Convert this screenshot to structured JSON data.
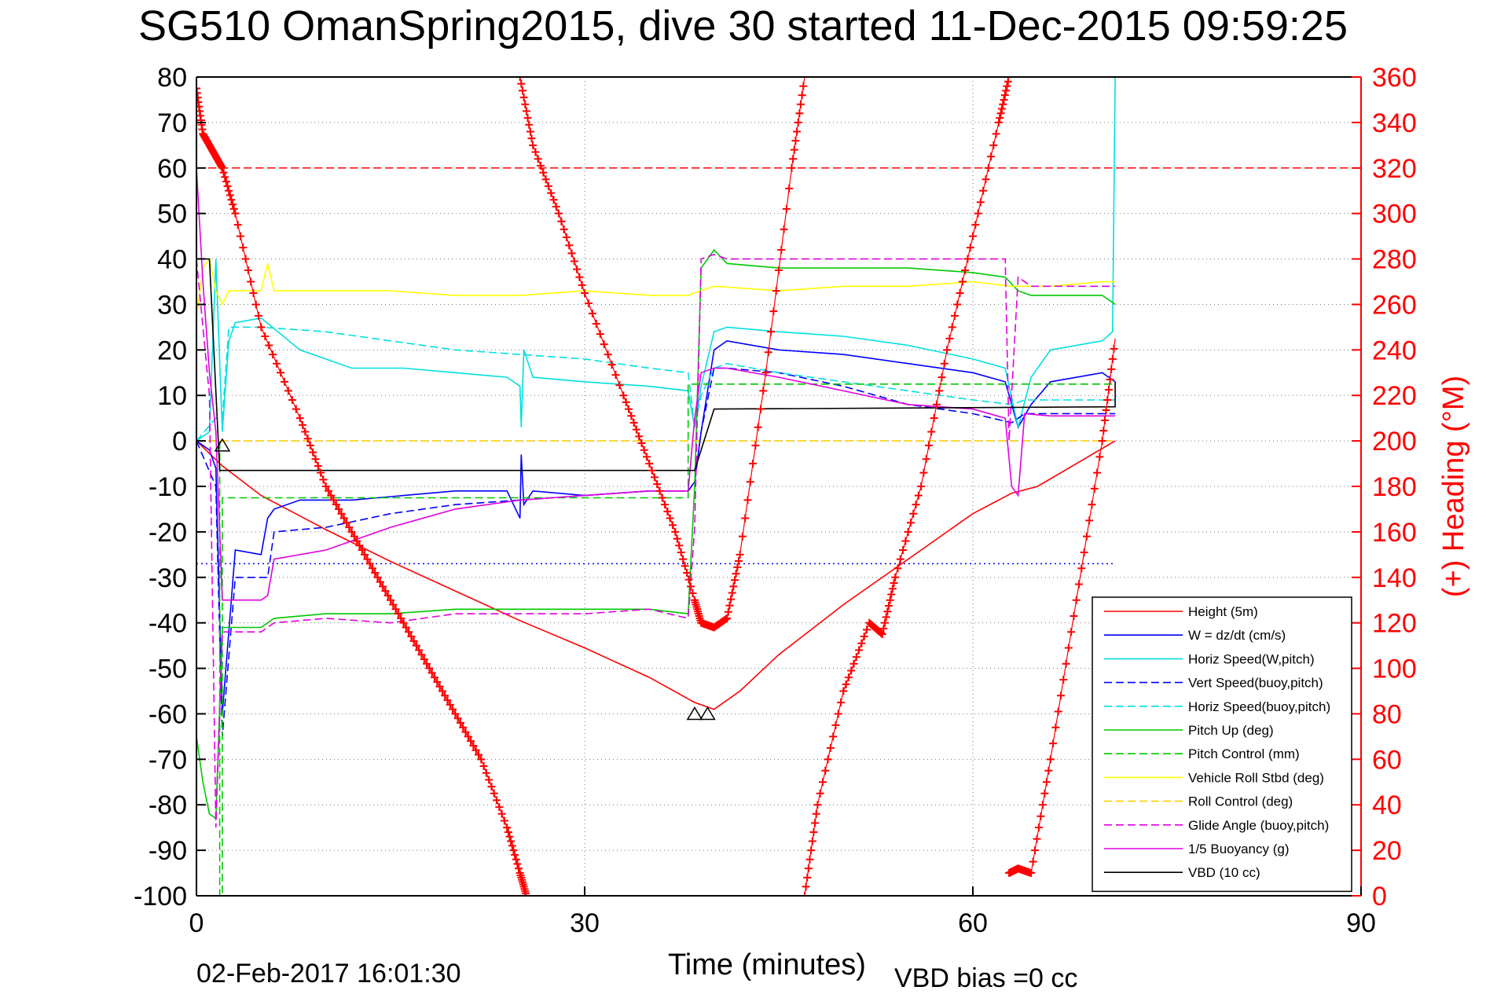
{
  "title": "SG510 OmanSpring2015, dive 30 started 11-Dec-2015 09:59:25",
  "date_stamp": "02-Feb-2017 16:01:30",
  "vbd_bias": "VBD bias =0 cc",
  "chart_data": {
    "type": "line",
    "title": "SG510 OmanSpring2015, dive 30 started 11-Dec-2015 09:59:25",
    "xlabel": "Time (minutes)",
    "ylabel": "",
    "y2label": "(+) Heading (°M)",
    "xlim": [
      0,
      90
    ],
    "ylim": [
      -100,
      80
    ],
    "y2lim": [
      0,
      360
    ],
    "xticks": [
      "0",
      "30",
      "60",
      "90"
    ],
    "yticks": [
      "80",
      "70",
      "60",
      "50",
      "40",
      "30",
      "20",
      "10",
      "0",
      "-10",
      "-20",
      "-30",
      "-40",
      "-50",
      "-60",
      "-70",
      "-80",
      "-90",
      "-100"
    ],
    "y2ticks": [
      "360",
      "340",
      "320",
      "300",
      "280",
      "260",
      "240",
      "220",
      "200",
      "180",
      "160",
      "140",
      "120",
      "100",
      "80",
      "60",
      "40",
      "20",
      "0"
    ],
    "grid": "dotted",
    "legend_position": "bottom-right",
    "colors": {
      "height": "#ff0000",
      "w": "#0000ff",
      "cyan": "#00e0e0",
      "green": "#00c800",
      "yellow": "#ffff00",
      "magenta": "#e000e0",
      "black": "#000000",
      "heading": "#ff0000",
      "axis_right": "#ff0000"
    },
    "series": [
      {
        "name": "Height (5m)",
        "color": "#ff0000",
        "dash": "solid",
        "x": [
          0,
          2,
          5,
          10,
          15,
          20,
          25,
          30,
          35,
          38.5,
          40,
          42,
          45,
          50,
          55,
          60,
          63,
          65,
          68,
          71
        ],
        "y": [
          0,
          -5.5,
          -12,
          -19.5,
          -26.5,
          -33,
          -39.5,
          -45.5,
          -52,
          -57.5,
          -59,
          -55,
          -47,
          -36,
          -26,
          -16,
          -11.5,
          -10,
          -5,
          0
        ]
      },
      {
        "name": "W = dz/dt (cm/s)",
        "color": "#0000ff",
        "dash": "solid",
        "x": [
          0,
          1,
          1.5,
          2,
          3,
          5,
          5.5,
          6,
          8,
          12,
          16,
          20,
          24,
          25,
          25.1,
          25.3,
          26,
          30,
          35,
          38,
          38.5,
          39,
          40,
          41,
          45,
          50,
          55,
          60,
          62.5,
          63.5,
          64.5,
          66,
          70,
          71
        ],
        "y": [
          0,
          -2,
          -6,
          -60,
          -24,
          -25,
          -17,
          -15,
          -13,
          -13,
          -12,
          -11,
          -11,
          -17,
          -3,
          -14,
          -11,
          -12,
          -11,
          -11,
          -9,
          2,
          20,
          22,
          20,
          19,
          17,
          15,
          13,
          3,
          8,
          13,
          15,
          13
        ]
      },
      {
        "name": "Horiz Speed(W,pitch)",
        "color": "#00e0e0",
        "dash": "solid",
        "x": [
          0,
          1,
          1.5,
          2,
          2.5,
          3,
          5,
          8,
          12,
          16,
          20,
          24,
          25,
          25.1,
          25.3,
          26,
          30,
          35,
          38,
          38.5,
          39,
          40,
          41,
          45,
          50,
          55,
          60,
          62.5,
          63.5,
          64.5,
          66,
          70,
          70.8,
          71
        ],
        "y": [
          0,
          2,
          40,
          2,
          22,
          26,
          27,
          20,
          16,
          16,
          15,
          14,
          12,
          3,
          20,
          14,
          13,
          12,
          11,
          3,
          12,
          24,
          25,
          24,
          23,
          21,
          18,
          16,
          3,
          14,
          20,
          22,
          24,
          80
        ]
      },
      {
        "name": "Vert Speed(buoy,pitch)",
        "color": "#0000ff",
        "dash": "dashed",
        "x": [
          0,
          1.5,
          2,
          3,
          5.5,
          6,
          10,
          15,
          20,
          25,
          30,
          35,
          38,
          38.5,
          39,
          40,
          41,
          45,
          50,
          55,
          60,
          63,
          64,
          66,
          70,
          71
        ],
        "y": [
          0,
          -10,
          -65,
          -30,
          -30,
          -20,
          -19,
          -16,
          -14,
          -13,
          -12,
          -11,
          -11,
          -9,
          2,
          16,
          16,
          15,
          12,
          8,
          6,
          4,
          6,
          6,
          6,
          6
        ]
      },
      {
        "name": "Horiz Speed(buoy,pitch)",
        "color": "#00e0e0",
        "dash": "dashed",
        "x": [
          0,
          1.5,
          2,
          2.5,
          5,
          10,
          15,
          20,
          25,
          30,
          35,
          38,
          38.5,
          39,
          40,
          41,
          45,
          50,
          55,
          60,
          63,
          64,
          66,
          70,
          71
        ],
        "y": [
          0,
          5,
          5,
          25,
          25,
          24,
          22,
          20,
          19,
          18,
          16,
          15,
          3,
          10,
          16,
          17,
          15,
          13,
          11,
          9,
          8,
          9,
          9,
          9,
          9
        ]
      },
      {
        "name": "Pitch Up (deg)",
        "color": "#00c800",
        "dash": "solid",
        "x": [
          0,
          0.5,
          1,
          1.5,
          2,
          3,
          5,
          5.5,
          6,
          10,
          15,
          20,
          25,
          30,
          35,
          38,
          38.5,
          39,
          40,
          41,
          45,
          50,
          55,
          60,
          62.5,
          63.5,
          64.5,
          66,
          70,
          71
        ],
        "y": [
          -65,
          -75,
          -82,
          -83,
          -41,
          -41,
          -41,
          -40,
          -39,
          -38,
          -38,
          -37,
          -37,
          -37,
          -37,
          -38,
          -10,
          38,
          42,
          39,
          38,
          38,
          38,
          37,
          36,
          33,
          32,
          32,
          32,
          30
        ]
      },
      {
        "name": "Pitch Control (mm)",
        "color": "#00c800",
        "dash": "dashed",
        "x": [
          0,
          1.8,
          1.8,
          2,
          2,
          38,
          38,
          71
        ],
        "y": [
          0,
          0,
          -100,
          -100,
          -12.5,
          -12.5,
          12.5,
          12.5
        ]
      },
      {
        "name": "Vehicle Roll Stbd (deg)",
        "color": "#ffff00",
        "dash": "solid",
        "x": [
          0,
          0.5,
          1,
          1.5,
          2,
          2.5,
          5,
          5.5,
          6,
          10,
          15,
          20,
          25,
          30,
          35,
          38,
          39,
          40,
          45,
          50,
          55,
          60,
          63,
          66,
          70,
          71
        ],
        "y": [
          27,
          38,
          40,
          33,
          30,
          33,
          33,
          39,
          33,
          33,
          33,
          32,
          32,
          33,
          32,
          32,
          33,
          34,
          33,
          34,
          34,
          35,
          34,
          34,
          35,
          35
        ]
      },
      {
        "name": "Roll Control (deg)",
        "color": "#ffd000",
        "dash": "dashed",
        "x": [
          0,
          71
        ],
        "y": [
          0,
          0
        ]
      },
      {
        "name": "Glide Angle (buoy,pitch)",
        "color": "#e000e0",
        "dash": "dashed",
        "x": [
          0,
          1,
          1.5,
          2,
          3,
          5,
          5.5,
          6,
          10,
          15,
          20,
          25,
          30,
          35,
          38,
          38.5,
          39,
          40,
          41,
          45,
          50,
          55,
          60,
          62.5,
          62.8,
          63.5,
          64.5,
          66,
          70,
          71
        ],
        "y": [
          40,
          10,
          -85,
          -42,
          -42,
          -42,
          -41,
          -40,
          -39,
          -40,
          -38,
          -38,
          -38,
          -37,
          -39,
          -19,
          40,
          41,
          40,
          40,
          40,
          40,
          40,
          40,
          0,
          36,
          34,
          34,
          34,
          34
        ]
      },
      {
        "name": "1/5 Buoyancy (g)",
        "color": "#e000e0",
        "dash": "solid",
        "x": [
          0,
          0.5,
          1,
          1.5,
          2,
          2.5,
          3,
          5,
          5.5,
          6,
          10,
          15,
          20,
          25,
          30,
          35,
          38,
          38.5,
          39,
          40,
          41,
          45,
          50,
          55,
          60,
          62.5,
          63,
          63.5,
          64,
          66,
          70,
          71
        ],
        "y": [
          60,
          35,
          15,
          2,
          -35,
          -35,
          -35,
          -35,
          -34,
          -26,
          -24,
          -19,
          -15,
          -13,
          -12,
          -11,
          -11,
          5,
          15,
          16,
          16,
          14,
          11,
          8,
          7,
          5,
          -10,
          -12,
          6,
          5.5,
          5.5,
          5.5
        ]
      },
      {
        "name": "VBD (10 cc)",
        "color": "#000000",
        "dash": "solid",
        "x": [
          0,
          1,
          1.8,
          2,
          38,
          38.5,
          40,
          71,
          71,
          71
        ],
        "y": [
          40,
          40,
          -6.5,
          -6.5,
          -6.5,
          -6.5,
          7,
          7.5,
          13,
          13
        ]
      }
    ],
    "heading": {
      "name": "(+) Heading (°M)",
      "color": "#ff0000",
      "marker": "+",
      "segments": [
        {
          "x": [
            0,
            0.5,
            1,
            1.5,
            2,
            3,
            5,
            8,
            10,
            12,
            14,
            16,
            18,
            20,
            22,
            24,
            25,
            25.5
          ],
          "y": [
            355,
            335,
            330,
            325,
            320,
            300,
            250,
            210,
            180,
            160,
            140,
            120,
            100,
            80,
            60,
            30,
            10,
            0
          ]
        },
        {
          "x": [
            25,
            26,
            28,
            30,
            33,
            35,
            37,
            38.5,
            39,
            40,
            41,
            42,
            44,
            46,
            47
          ],
          "y": [
            360,
            330,
            300,
            265,
            220,
            190,
            160,
            130,
            120,
            118,
            122,
            150,
            230,
            320,
            360
          ]
        },
        {
          "x": [
            47,
            48,
            50,
            52,
            53,
            54,
            56,
            58,
            60,
            62,
            62.8
          ],
          "y": [
            0,
            40,
            90,
            120,
            115,
            140,
            180,
            240,
            290,
            340,
            360
          ]
        },
        {
          "x": [
            62.8,
            63.5,
            64.5,
            66,
            68,
            70,
            71
          ],
          "y": [
            10,
            12,
            10,
            60,
            130,
            200,
            245
          ]
        }
      ]
    },
    "markers": [
      {
        "type": "triangle",
        "x": 2,
        "y": -1
      },
      {
        "type": "triangle",
        "x": 38.5,
        "y": -60
      },
      {
        "type": "triangle",
        "x": 39.5,
        "y": -60
      }
    ],
    "reference_lines": [
      {
        "axis": "y",
        "value": 60,
        "color": "#ff0000",
        "dash": "dashed"
      },
      {
        "axis": "y",
        "value": -27,
        "color": "#0000ff",
        "dash": "dotted",
        "x": [
          0,
          71
        ]
      }
    ]
  }
}
